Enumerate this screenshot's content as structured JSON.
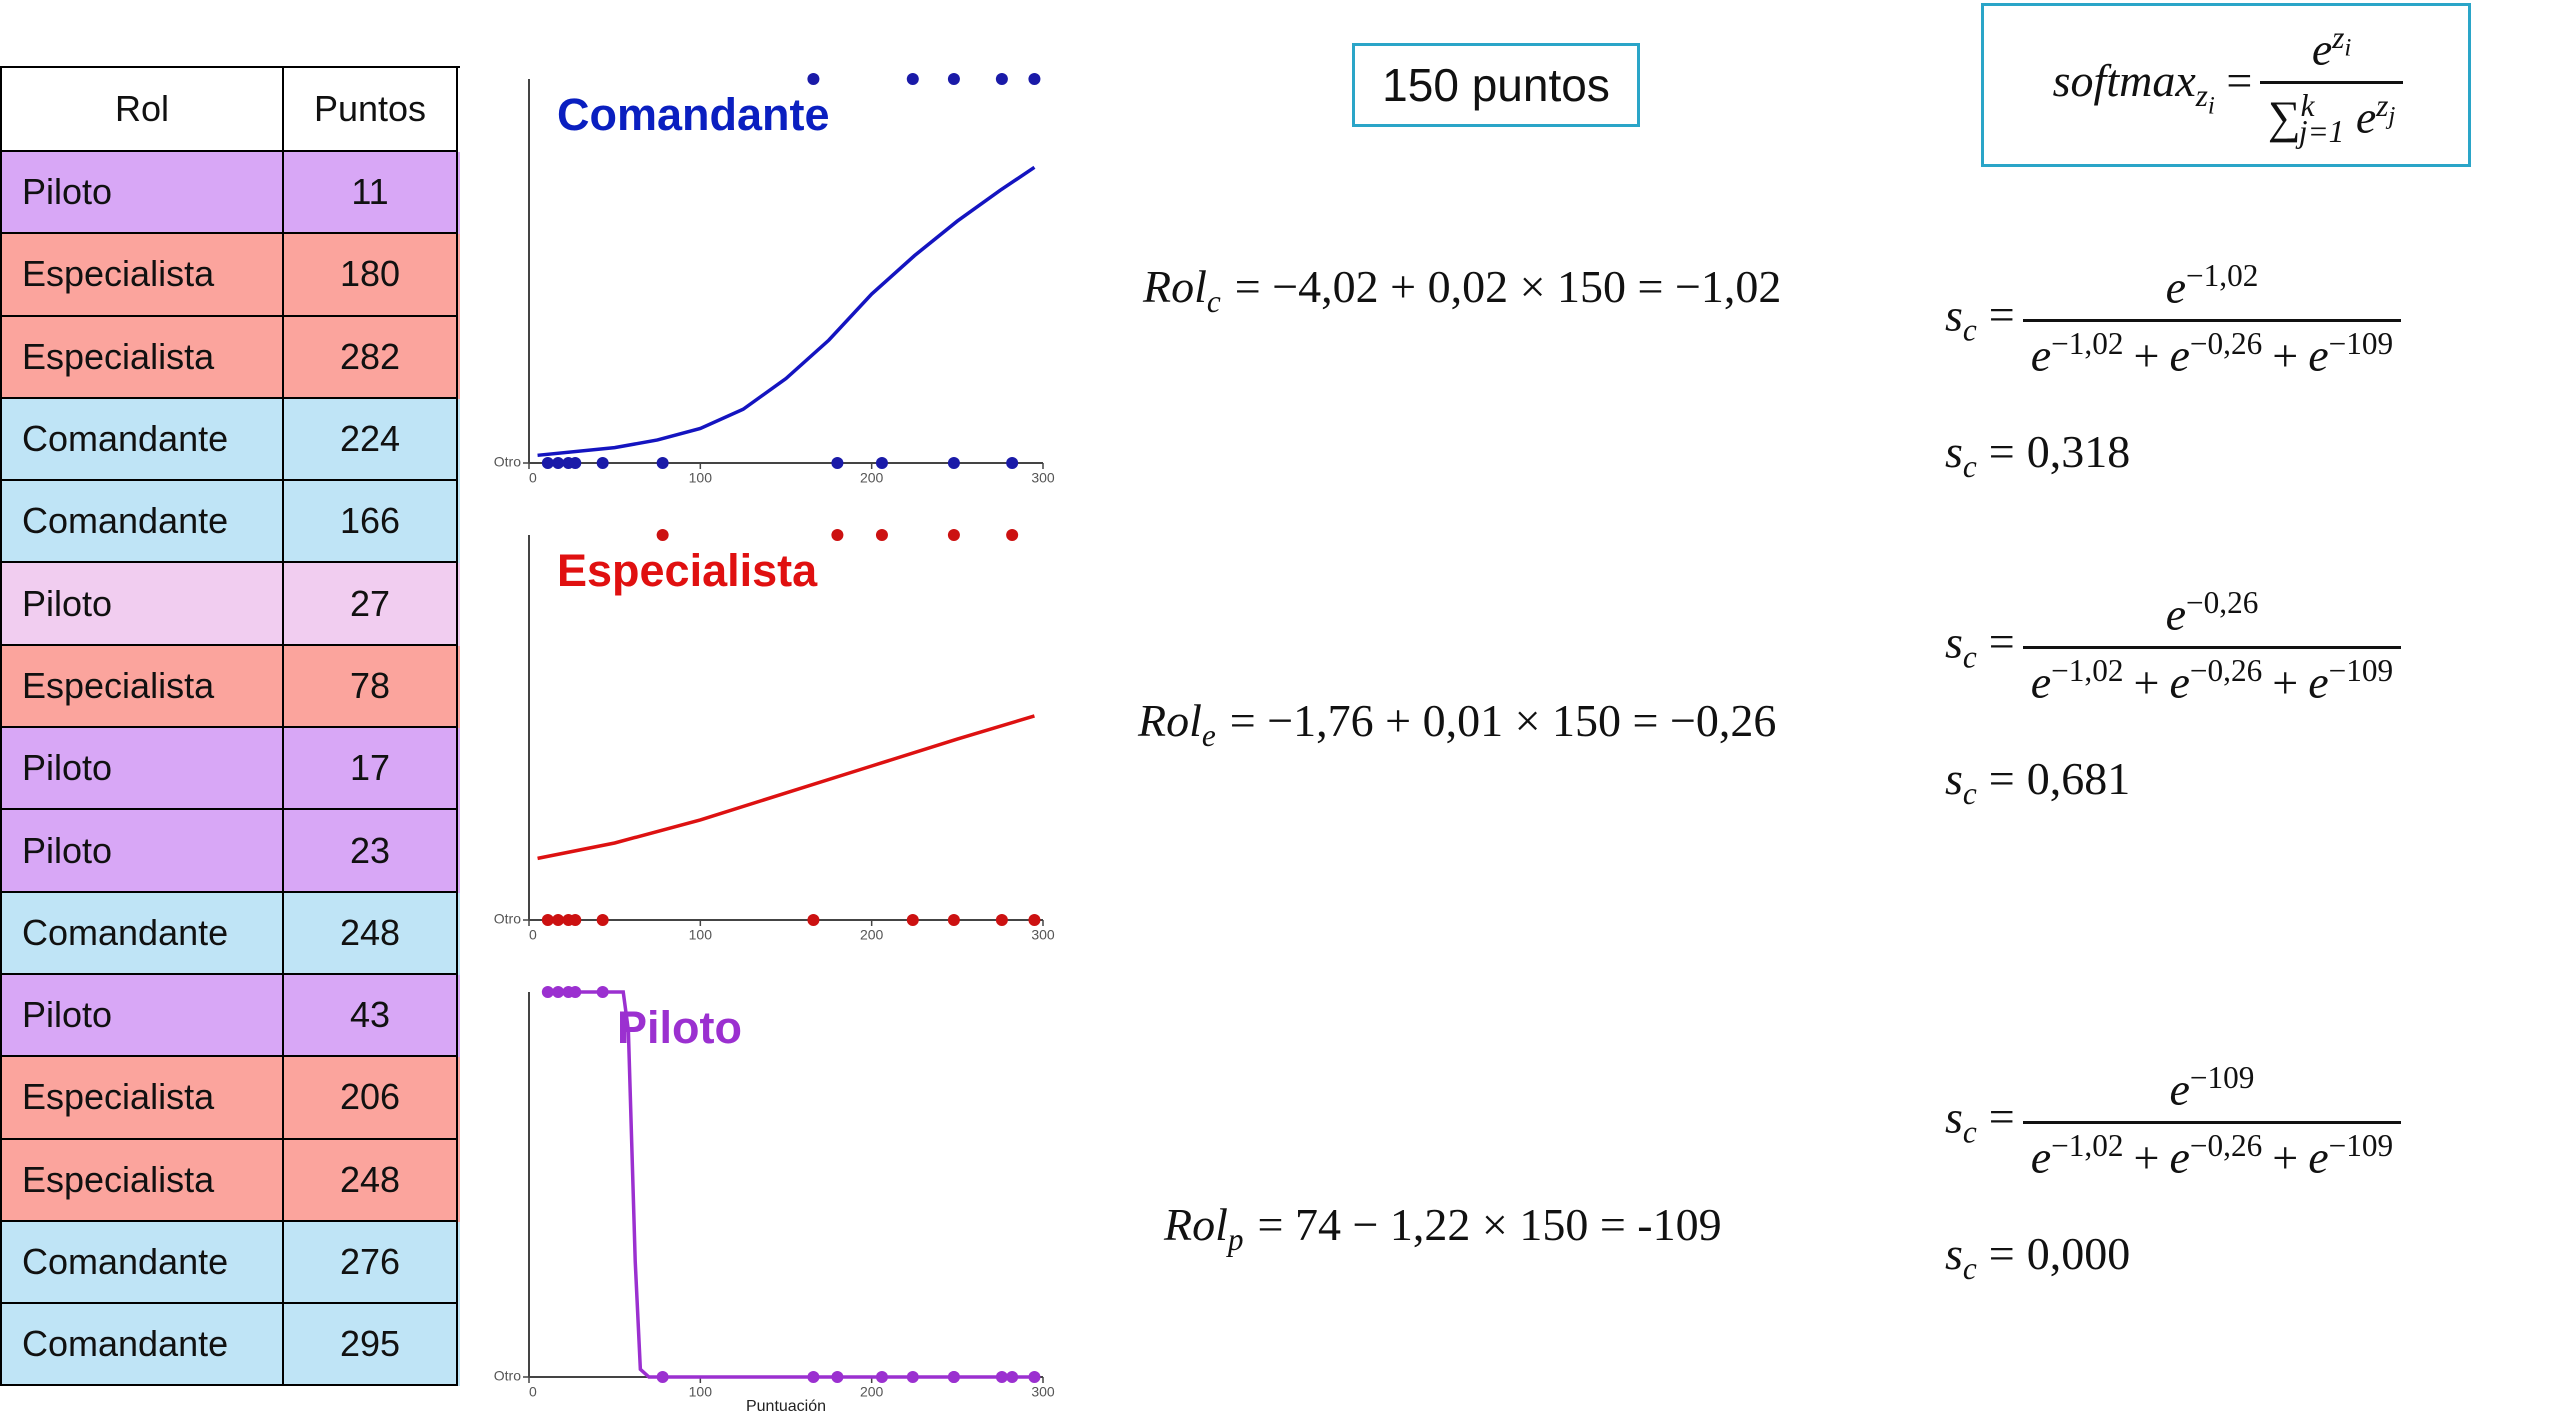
{
  "table": {
    "header": [
      "Rol",
      "Puntos"
    ],
    "rows": [
      [
        "Piloto",
        11
      ],
      [
        "Especialista",
        180
      ],
      [
        "Especialista",
        282
      ],
      [
        "Comandante",
        224
      ],
      [
        "Comandante",
        166
      ],
      [
        "Piloto",
        27
      ],
      [
        "Especialista",
        78
      ],
      [
        "Piloto",
        17
      ],
      [
        "Piloto",
        23
      ],
      [
        "Comandante",
        248
      ],
      [
        "Piloto",
        43
      ],
      [
        "Especialista",
        206
      ],
      [
        "Especialista",
        248
      ],
      [
        "Comandante",
        276
      ],
      [
        "Comandante",
        295
      ]
    ],
    "colors": [
      "#d8a7f6",
      "#fba49d",
      "#fba49d",
      "#bfe4f6",
      "#bfe4f6",
      "#f1cdf0",
      "#fba49d",
      "#d8a7f6",
      "#d8a7f6",
      "#bfe4f6",
      "#d8a7f6",
      "#fba49d",
      "#fba49d",
      "#bfe4f6",
      "#bfe4f6"
    ]
  },
  "chart_data": [
    {
      "type": "line",
      "title": "Comandante",
      "title_color": "#0a1fc0",
      "xlim": [
        0,
        300
      ],
      "xticks": [
        0,
        100,
        200,
        300
      ],
      "ylim": [
        0,
        1
      ],
      "yticks": [
        {
          "value": 0,
          "label": "Otro"
        }
      ],
      "series": [
        {
          "type": "scatter",
          "color": "#1a1aa8",
          "x": [
            166,
            224,
            248,
            276,
            295,
            11,
            17,
            23,
            27,
            43,
            78,
            180,
            206,
            248,
            282
          ],
          "values": [
            1,
            1,
            1,
            1,
            1,
            0,
            0,
            0,
            0,
            0,
            0,
            0,
            0,
            0,
            0
          ]
        },
        {
          "type": "line",
          "color": "#1414c0",
          "x": [
            5,
            50,
            75,
            100,
            125,
            150,
            175,
            200,
            225,
            250,
            275,
            295
          ],
          "values": [
            0.02,
            0.04,
            0.06,
            0.09,
            0.14,
            0.22,
            0.32,
            0.44,
            0.54,
            0.63,
            0.71,
            0.77
          ]
        }
      ]
    },
    {
      "type": "line",
      "title": "Especialista",
      "title_color": "#e01010",
      "xlim": [
        0,
        300
      ],
      "xticks": [
        0,
        100,
        200,
        300
      ],
      "ylim": [
        0,
        1
      ],
      "yticks": [
        {
          "value": 0,
          "label": "Otro"
        }
      ],
      "series": [
        {
          "type": "scatter",
          "color": "#cc1111",
          "x": [
            78,
            180,
            206,
            248,
            282,
            11,
            17,
            23,
            27,
            43,
            166,
            224,
            248,
            276,
            295
          ],
          "values": [
            1,
            1,
            1,
            1,
            1,
            0,
            0,
            0,
            0,
            0,
            0,
            0,
            0,
            0,
            0
          ]
        },
        {
          "type": "line",
          "color": "#dd1111",
          "x": [
            5,
            50,
            100,
            150,
            200,
            250,
            295
          ],
          "values": [
            0.16,
            0.2,
            0.26,
            0.33,
            0.4,
            0.47,
            0.53
          ]
        }
      ]
    },
    {
      "type": "line",
      "title": "Piloto",
      "title_color": "#9b30d0",
      "x_label": "Puntuación",
      "xlim": [
        0,
        300
      ],
      "xticks": [
        0,
        100,
        200,
        300
      ],
      "ylim": [
        0,
        1
      ],
      "yticks": [
        {
          "value": 0,
          "label": "Otro"
        }
      ],
      "series": [
        {
          "type": "scatter",
          "color": "#9b30d0",
          "x": [
            11,
            17,
            23,
            27,
            43,
            78,
            166,
            180,
            206,
            224,
            248,
            248,
            276,
            282,
            295
          ],
          "values": [
            1,
            1,
            1,
            1,
            1,
            0,
            0,
            0,
            0,
            0,
            0,
            0,
            0,
            0,
            0
          ]
        },
        {
          "type": "line",
          "color": "#9b30d0",
          "x": [
            11,
            55,
            58,
            62,
            65,
            70,
            295
          ],
          "values": [
            1,
            1,
            0.9,
            0.3,
            0.02,
            0,
            0
          ]
        }
      ]
    }
  ],
  "points_box": "150 puntos",
  "softmax": {
    "lhs": "softmax",
    "lhs_sub": "z",
    "lhs_subsub": "i",
    "eq": "=",
    "num_base": "e",
    "num_sup": "z",
    "num_supsub": "i",
    "den_sum": "∑",
    "den_sup": "k",
    "den_sub": "j=1",
    "den_base": "e",
    "den_exp": "z",
    "den_expsub": "j"
  },
  "formulas": [
    {
      "lhs": "Rol",
      "sub": "c",
      "rhs": "= −4,02 + 0,02 × 150 = −1,02"
    },
    {
      "lhs": "Rol",
      "sub": "e",
      "rhs": "= −1,76 + 0,01 × 150 = −0,26"
    },
    {
      "lhs": "Rol",
      "sub": "p",
      "rhs": "= 74 − 1,22 × 150 = -109"
    }
  ],
  "scores": [
    {
      "lhs": "s",
      "sub": "c",
      "eq": "=",
      "num": {
        "base": "e",
        "exp": "−1,02"
      },
      "op": "+",
      "den": [
        {
          "base": "e",
          "exp": "−1,02"
        },
        {
          "base": "e",
          "exp": "−0,26"
        },
        {
          "base": "e",
          "exp": "−109"
        }
      ],
      "result": {
        "lhs": "s",
        "sub": "c",
        "eq": "=",
        "value": "0,318"
      }
    },
    {
      "lhs": "s",
      "sub": "c",
      "eq": "=",
      "num": {
        "base": "e",
        "exp": "−0,26"
      },
      "op": "+",
      "den": [
        {
          "base": "e",
          "exp": "−1,02"
        },
        {
          "base": "e",
          "exp": "−0,26"
        },
        {
          "base": "e",
          "exp": "−109"
        }
      ],
      "result": {
        "lhs": "s",
        "sub": "c",
        "eq": "=",
        "value": "0,681"
      }
    },
    {
      "lhs": "s",
      "sub": "c",
      "eq": "=",
      "num": {
        "base": "e",
        "exp": "−109"
      },
      "op": "+",
      "den": [
        {
          "base": "e",
          "exp": "−1,02"
        },
        {
          "base": "e",
          "exp": "−0,26"
        },
        {
          "base": "e",
          "exp": "−109"
        }
      ],
      "result": {
        "lhs": "s",
        "sub": "c",
        "eq": "=",
        "value": "0,000"
      }
    }
  ]
}
